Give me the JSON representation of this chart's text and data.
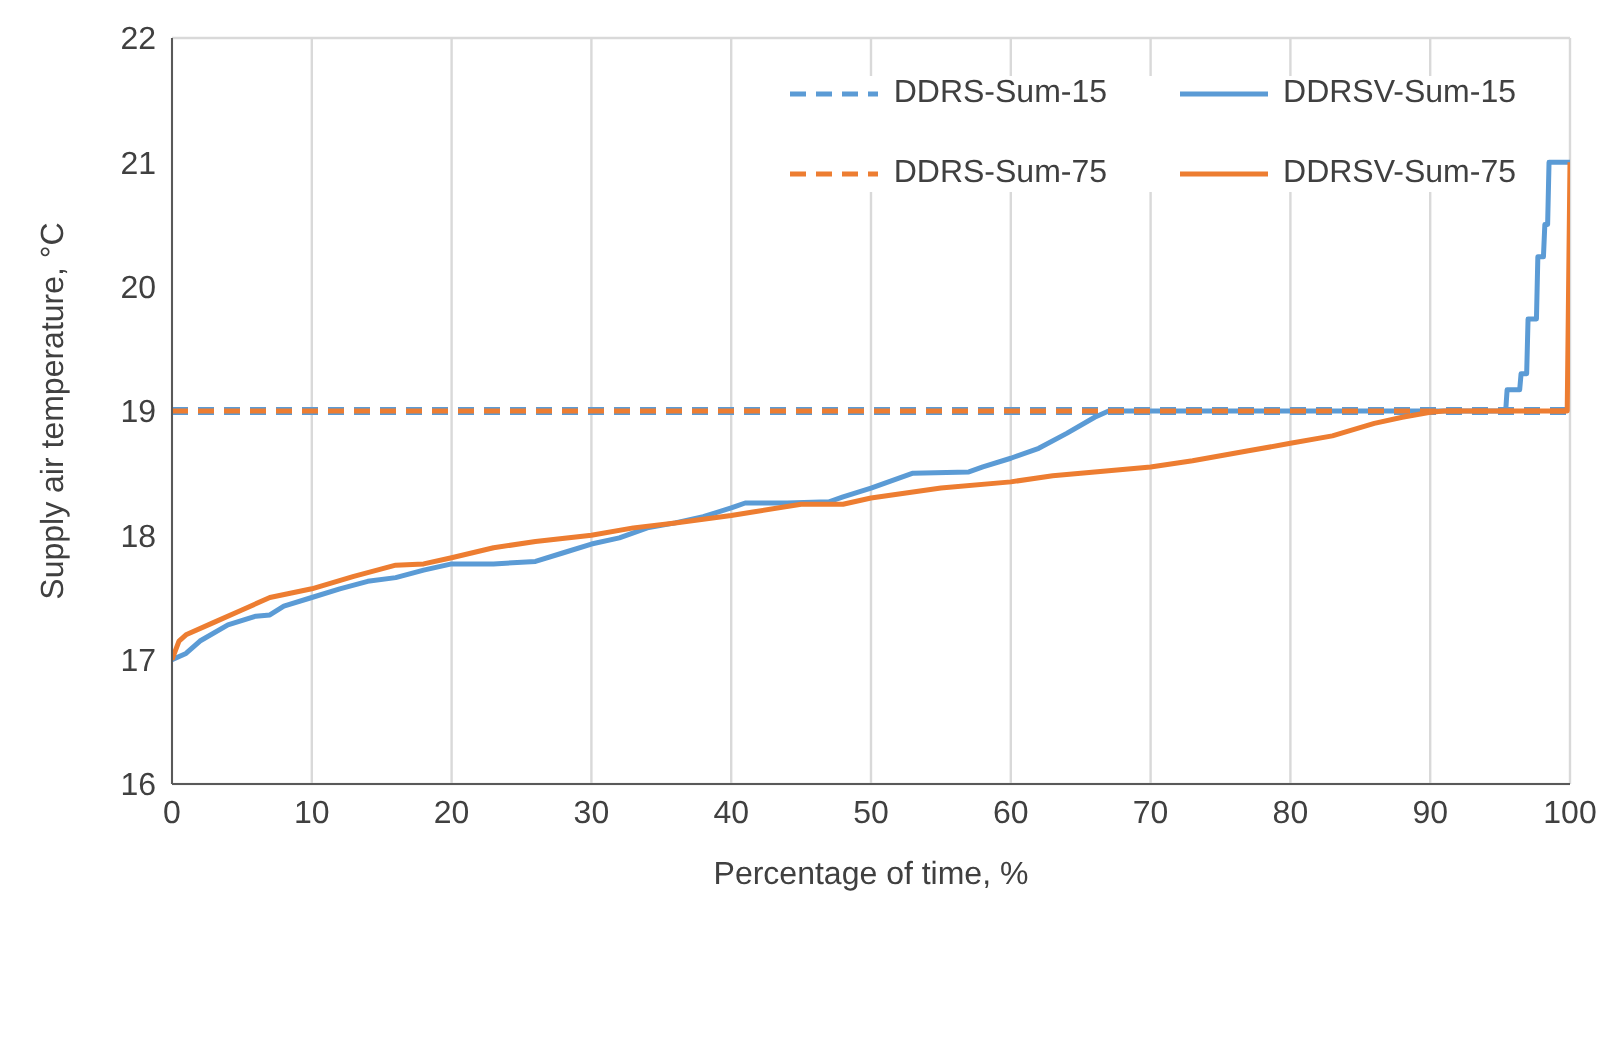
{
  "chart_data": {
    "type": "line",
    "xlabel": "Percentage of time, %",
    "ylabel": "Supply air temperature, °C",
    "xlim": [
      0,
      100
    ],
    "xticks": [
      0,
      10,
      20,
      30,
      40,
      50,
      60,
      70,
      80,
      90,
      100
    ],
    "ylim": [
      16,
      22
    ],
    "yticks": [
      16,
      17,
      18,
      19,
      20,
      21,
      22
    ],
    "grid": true,
    "legend": "top right",
    "marker": "none",
    "series": [
      {
        "name": "DDRS-Sum-15",
        "color": "#5b9bd5",
        "line_style": "dashed",
        "x": [
          0,
          100
        ],
        "values": [
          19,
          19
        ]
      },
      {
        "name": "DDRSV-Sum-15",
        "color": "#5b9bd5",
        "line_style": "solid",
        "x": [
          0,
          1,
          2,
          4,
          6,
          7,
          8,
          10,
          12,
          14,
          16,
          18,
          20,
          23,
          26,
          28,
          30,
          32,
          34,
          36,
          38,
          40,
          41,
          44,
          47,
          48,
          50,
          52,
          53,
          57,
          58,
          60,
          62,
          64,
          66,
          67,
          95.4,
          95.5,
          96.4,
          96.5,
          96.9,
          97,
          97.6,
          97.7,
          98.1,
          98.2,
          98.4,
          98.5,
          100
        ],
        "values": [
          17,
          17.05,
          17.15,
          17.28,
          17.35,
          17.36,
          17.43,
          17.5,
          17.57,
          17.63,
          17.66,
          17.72,
          17.77,
          17.77,
          17.79,
          17.86,
          17.93,
          17.98,
          18.06,
          18.1,
          18.15,
          18.22,
          18.26,
          18.26,
          18.27,
          18.31,
          18.38,
          18.46,
          18.5,
          18.51,
          18.55,
          18.62,
          18.7,
          18.82,
          18.95,
          19,
          19,
          19.17,
          19.17,
          19.3,
          19.3,
          19.74,
          19.74,
          20.24,
          20.24,
          20.5,
          20.5,
          21,
          21
        ]
      },
      {
        "name": "DDRS-Sum-75",
        "color": "#ed7d31",
        "line_style": "dashed",
        "x": [
          0,
          100
        ],
        "values": [
          19,
          19
        ]
      },
      {
        "name": "DDRSV-Sum-75",
        "color": "#ed7d31",
        "line_style": "solid",
        "x": [
          0,
          0.5,
          1,
          3,
          5,
          7,
          10,
          13,
          16,
          18,
          20,
          23,
          26,
          30,
          33,
          36,
          40,
          45,
          48,
          50,
          55,
          60,
          63,
          66,
          70,
          73,
          77,
          80,
          83,
          86,
          88,
          90,
          91,
          99.8,
          100
        ],
        "values": [
          17,
          17.15,
          17.2,
          17.3,
          17.4,
          17.5,
          17.57,
          17.67,
          17.76,
          17.77,
          17.82,
          17.9,
          17.95,
          18,
          18.06,
          18.1,
          18.16,
          18.25,
          18.25,
          18.3,
          18.38,
          18.43,
          18.48,
          18.51,
          18.55,
          18.6,
          18.68,
          18.74,
          18.8,
          18.9,
          18.95,
          18.99,
          19,
          19,
          21
        ]
      }
    ]
  }
}
